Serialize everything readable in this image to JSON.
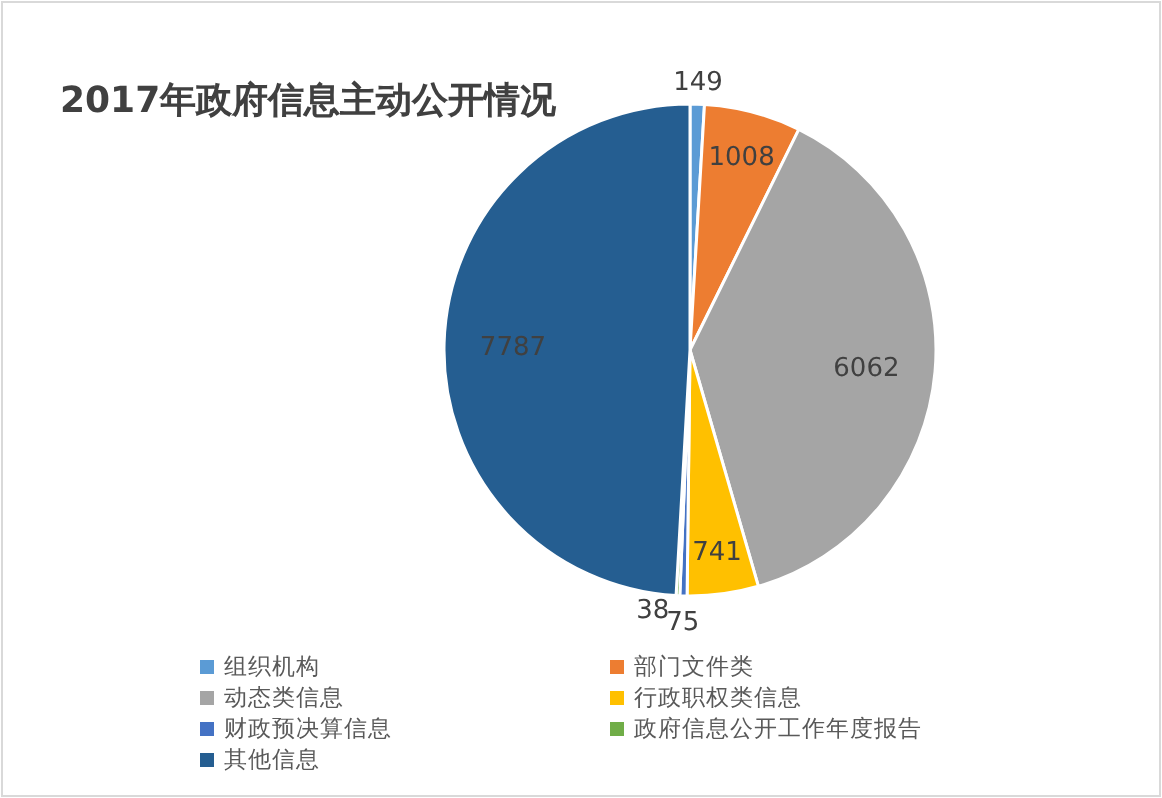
{
  "chart_data": {
    "type": "pie",
    "title": "2017年政府信息主动公开情况",
    "categories": [
      "组织机构",
      "部门文件类",
      "动态类信息",
      "行政职权类信息",
      "财政预决算信息",
      "政府信息公开工作年度报告",
      "其他信息"
    ],
    "values": [
      149,
      1008,
      6062,
      741,
      75,
      38,
      7787
    ],
    "colors": [
      "#5b9bd5",
      "#ed7d31",
      "#a5a5a5",
      "#ffc000",
      "#4472c4",
      "#70ad47",
      "#255e91"
    ],
    "data_labels": true,
    "legend": "bottom"
  }
}
